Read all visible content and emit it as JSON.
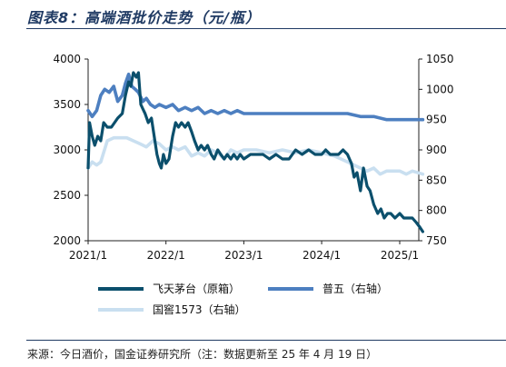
{
  "title": "图表8：高端酒批价走势（元/瓶）",
  "source": "来源：今日酒价，国金证券研究所（注：数据更新至 25 年 4 月 19 日）",
  "colors": {
    "feitian": "#0b4f6c",
    "puwu": "#4d7fc0",
    "guojiao": "#c9dff0"
  },
  "chart_data": {
    "type": "line",
    "x_ticks": [
      "2021/1",
      "2022/1",
      "2023/1",
      "2024/1",
      "2025/1"
    ],
    "y_left": {
      "ticks": [
        2000,
        2500,
        3000,
        3500,
        4000
      ],
      "range": [
        2000,
        4000
      ]
    },
    "y_right": {
      "ticks": [
        750,
        800,
        850,
        900,
        950,
        1000,
        1050
      ],
      "range": [
        750,
        1050
      ]
    },
    "series": [
      {
        "name": "飞天茅台（原箱）",
        "axis": "left",
        "color_key": "feitian",
        "points": [
          [
            "2021-01-01",
            2800
          ],
          [
            "2021-01-08",
            3300
          ],
          [
            "2021-01-20",
            3150
          ],
          [
            "2021-02-01",
            3050
          ],
          [
            "2021-02-15",
            3150
          ],
          [
            "2021-03-01",
            3100
          ],
          [
            "2021-03-15",
            3300
          ],
          [
            "2021-04-01",
            3250
          ],
          [
            "2021-04-20",
            3250
          ],
          [
            "2021-05-05",
            3300
          ],
          [
            "2021-05-20",
            3350
          ],
          [
            "2021-06-10",
            3400
          ],
          [
            "2021-06-25",
            3600
          ],
          [
            "2021-07-10",
            3750
          ],
          [
            "2021-07-20",
            3700
          ],
          [
            "2021-08-01",
            3850
          ],
          [
            "2021-08-15",
            3800
          ],
          [
            "2021-08-25",
            3850
          ],
          [
            "2021-09-05",
            3500
          ],
          [
            "2021-09-15",
            3450
          ],
          [
            "2021-09-25",
            3400
          ],
          [
            "2021-10-10",
            3300
          ],
          [
            "2021-10-25",
            3350
          ],
          [
            "2021-11-10",
            3100
          ],
          [
            "2021-11-20",
            2950
          ],
          [
            "2021-12-01",
            2850
          ],
          [
            "2021-12-10",
            2800
          ],
          [
            "2021-12-20",
            2950
          ],
          [
            "2022-01-01",
            2850
          ],
          [
            "2022-01-15",
            2900
          ],
          [
            "2022-02-01",
            3150
          ],
          [
            "2022-02-15",
            3300
          ],
          [
            "2022-03-01",
            3250
          ],
          [
            "2022-03-15",
            3300
          ],
          [
            "2022-04-01",
            3250
          ],
          [
            "2022-04-15",
            3300
          ],
          [
            "2022-05-01",
            3200
          ],
          [
            "2022-05-15",
            3100
          ],
          [
            "2022-06-01",
            3000
          ],
          [
            "2022-06-15",
            3050
          ],
          [
            "2022-07-01",
            3000
          ],
          [
            "2022-07-15",
            3050
          ],
          [
            "2022-08-01",
            2950
          ],
          [
            "2022-08-15",
            2900
          ],
          [
            "2022-09-01",
            3000
          ],
          [
            "2022-09-15",
            2950
          ],
          [
            "2022-10-01",
            2900
          ],
          [
            "2022-10-15",
            2950
          ],
          [
            "2022-11-01",
            2900
          ],
          [
            "2022-11-15",
            2950
          ],
          [
            "2022-12-01",
            2900
          ],
          [
            "2022-12-15",
            2950
          ],
          [
            "2023-01-01",
            2900
          ],
          [
            "2023-02-01",
            2950
          ],
          [
            "2023-03-01",
            2950
          ],
          [
            "2023-04-01",
            2950
          ],
          [
            "2023-05-01",
            2900
          ],
          [
            "2023-06-01",
            2950
          ],
          [
            "2023-07-01",
            2900
          ],
          [
            "2023-08-01",
            2900
          ],
          [
            "2023-09-01",
            3000
          ],
          [
            "2023-10-01",
            2950
          ],
          [
            "2023-11-01",
            3000
          ],
          [
            "2023-12-01",
            2950
          ],
          [
            "2024-01-01",
            2950
          ],
          [
            "2024-01-20",
            3000
          ],
          [
            "2024-02-10",
            2950
          ],
          [
            "2024-03-01",
            2950
          ],
          [
            "2024-03-20",
            2950
          ],
          [
            "2024-04-10",
            3000
          ],
          [
            "2024-05-01",
            2950
          ],
          [
            "2024-05-20",
            2850
          ],
          [
            "2024-06-01",
            2700
          ],
          [
            "2024-06-15",
            2750
          ],
          [
            "2024-07-01",
            2550
          ],
          [
            "2024-07-15",
            2800
          ],
          [
            "2024-08-01",
            2600
          ],
          [
            "2024-08-15",
            2550
          ],
          [
            "2024-09-01",
            2400
          ],
          [
            "2024-09-20",
            2300
          ],
          [
            "2024-10-05",
            2350
          ],
          [
            "2024-10-20",
            2250
          ],
          [
            "2024-11-05",
            2300
          ],
          [
            "2024-11-20",
            2300
          ],
          [
            "2024-12-10",
            2250
          ],
          [
            "2025-01-01",
            2300
          ],
          [
            "2025-01-20",
            2250
          ],
          [
            "2025-02-10",
            2250
          ],
          [
            "2025-03-01",
            2250
          ],
          [
            "2025-03-20",
            2200
          ],
          [
            "2025-04-05",
            2150
          ],
          [
            "2025-04-19",
            2100
          ]
        ]
      },
      {
        "name": "普五（右轴）",
        "axis": "right",
        "color_key": "puwu",
        "points": [
          [
            "2021-01-01",
            965
          ],
          [
            "2021-01-20",
            955
          ],
          [
            "2021-02-10",
            965
          ],
          [
            "2021-03-01",
            990
          ],
          [
            "2021-03-20",
            1000
          ],
          [
            "2021-04-10",
            995
          ],
          [
            "2021-05-01",
            1005
          ],
          [
            "2021-05-20",
            980
          ],
          [
            "2021-06-10",
            990
          ],
          [
            "2021-06-25",
            1010
          ],
          [
            "2021-07-10",
            1025
          ],
          [
            "2021-07-25",
            1005
          ],
          [
            "2021-08-10",
            1000
          ],
          [
            "2021-08-25",
            995
          ],
          [
            "2021-09-15",
            980
          ],
          [
            "2021-10-01",
            985
          ],
          [
            "2021-10-20",
            975
          ],
          [
            "2021-11-10",
            970
          ],
          [
            "2021-12-01",
            975
          ],
          [
            "2022-01-01",
            970
          ],
          [
            "2022-02-01",
            975
          ],
          [
            "2022-03-01",
            965
          ],
          [
            "2022-04-01",
            970
          ],
          [
            "2022-05-01",
            965
          ],
          [
            "2022-06-01",
            970
          ],
          [
            "2022-07-01",
            960
          ],
          [
            "2022-08-01",
            965
          ],
          [
            "2022-09-01",
            960
          ],
          [
            "2022-10-01",
            965
          ],
          [
            "2022-11-01",
            960
          ],
          [
            "2022-12-01",
            965
          ],
          [
            "2023-01-01",
            960
          ],
          [
            "2023-03-01",
            960
          ],
          [
            "2023-05-01",
            960
          ],
          [
            "2023-07-01",
            960
          ],
          [
            "2023-09-01",
            960
          ],
          [
            "2023-11-01",
            960
          ],
          [
            "2024-01-01",
            960
          ],
          [
            "2024-03-01",
            960
          ],
          [
            "2024-05-01",
            960
          ],
          [
            "2024-07-01",
            955
          ],
          [
            "2024-09-01",
            955
          ],
          [
            "2024-11-01",
            950
          ],
          [
            "2025-01-01",
            950
          ],
          [
            "2025-03-01",
            950
          ],
          [
            "2025-04-19",
            950
          ]
        ]
      },
      {
        "name": "国窖1573（右轴）",
        "axis": "right",
        "color_key": "guojiao",
        "points": [
          [
            "2021-01-01",
            870
          ],
          [
            "2021-01-20",
            880
          ],
          [
            "2021-02-10",
            875
          ],
          [
            "2021-03-01",
            880
          ],
          [
            "2021-04-01",
            915
          ],
          [
            "2021-05-01",
            920
          ],
          [
            "2021-06-01",
            920
          ],
          [
            "2021-07-01",
            920
          ],
          [
            "2021-08-01",
            915
          ],
          [
            "2021-09-01",
            910
          ],
          [
            "2021-10-01",
            905
          ],
          [
            "2021-11-01",
            915
          ],
          [
            "2021-12-01",
            910
          ],
          [
            "2022-01-01",
            900
          ],
          [
            "2022-02-01",
            905
          ],
          [
            "2022-03-01",
            900
          ],
          [
            "2022-04-01",
            905
          ],
          [
            "2022-05-01",
            890
          ],
          [
            "2022-06-01",
            895
          ],
          [
            "2022-07-01",
            890
          ],
          [
            "2022-08-01",
            900
          ],
          [
            "2022-09-01",
            895
          ],
          [
            "2022-10-01",
            885
          ],
          [
            "2022-11-01",
            900
          ],
          [
            "2022-12-01",
            895
          ],
          [
            "2023-01-01",
            900
          ],
          [
            "2023-03-01",
            900
          ],
          [
            "2023-05-01",
            895
          ],
          [
            "2023-07-01",
            900
          ],
          [
            "2023-09-01",
            895
          ],
          [
            "2023-11-01",
            900
          ],
          [
            "2024-01-01",
            895
          ],
          [
            "2024-03-01",
            890
          ],
          [
            "2024-05-01",
            880
          ],
          [
            "2024-06-01",
            875
          ],
          [
            "2024-07-01",
            870
          ],
          [
            "2024-08-01",
            865
          ],
          [
            "2024-09-01",
            870
          ],
          [
            "2024-10-01",
            860
          ],
          [
            "2024-11-01",
            865
          ],
          [
            "2024-12-01",
            865
          ],
          [
            "2025-01-01",
            865
          ],
          [
            "2025-02-01",
            860
          ],
          [
            "2025-03-01",
            865
          ],
          [
            "2025-04-19",
            860
          ]
        ]
      }
    ]
  }
}
